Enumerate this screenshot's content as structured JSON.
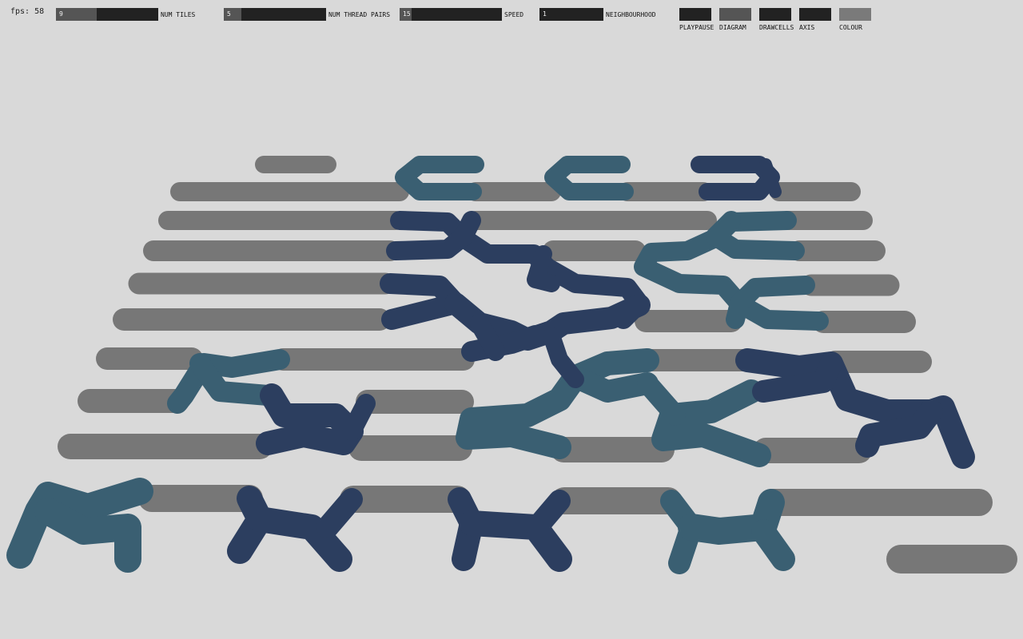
{
  "fps": "fps: 58",
  "sliders": [
    {
      "value": "9",
      "label": "NUM TILES",
      "fill": 0.4
    },
    {
      "value": "5",
      "label": "NUM THREAD PAIRS",
      "fill": 0.17
    },
    {
      "value": "15",
      "label": "SPEED",
      "fill": 0.12
    },
    {
      "value": "1",
      "label": "NEIGHBOURHOOD",
      "fill": 0.0
    }
  ],
  "toggles": [
    {
      "label": "PLAYPAUSE",
      "on": false
    },
    {
      "label": "DIAGRAM",
      "on": true
    },
    {
      "label": "DRAWCELLS",
      "on": false
    },
    {
      "label": "AXIS",
      "on": false
    },
    {
      "label": "COLOUR",
      "on": true
    }
  ],
  "colors": {
    "background": "#d9d9d9",
    "thread_grey": "#777777",
    "thread_teal": "#3a5f72",
    "thread_navy": "#2c3e5f"
  }
}
